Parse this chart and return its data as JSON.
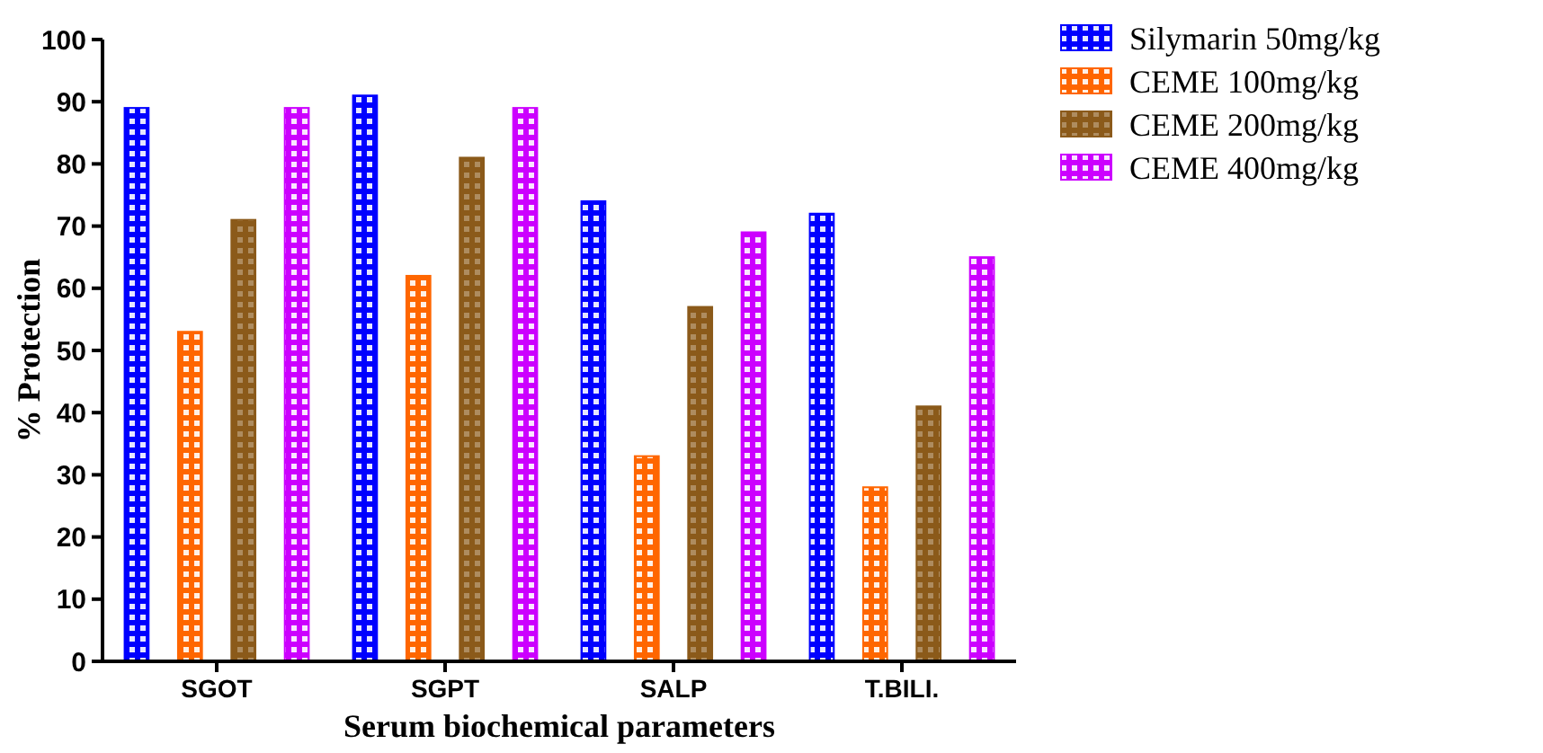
{
  "chart_data": {
    "type": "bar",
    "xlabel": "Serum biochemical parameters",
    "ylabel": "% Protection",
    "categories": [
      "SGOT",
      "SGPT",
      "SALP",
      "T.BILI."
    ],
    "series": [
      {
        "name": "Silymarin 50mg/kg",
        "color": "#0000ff",
        "values": [
          89,
          91,
          74,
          72
        ]
      },
      {
        "name": "CEME 100mg/kg",
        "color": "#ff6600",
        "values": [
          53,
          62,
          33,
          28
        ]
      },
      {
        "name": "CEME 200mg/kg",
        "color": "#8b5a1a",
        "values": [
          71,
          81,
          57,
          41
        ]
      },
      {
        "name": "CEME 400mg/kg",
        "color": "#cc00ff",
        "values": [
          89,
          89,
          69,
          65
        ]
      }
    ],
    "ylim": [
      0,
      100
    ],
    "yticks": [
      0,
      10,
      20,
      30,
      40,
      50,
      60,
      70,
      80,
      90,
      100
    ],
    "legend": "top right",
    "grid": false
  }
}
